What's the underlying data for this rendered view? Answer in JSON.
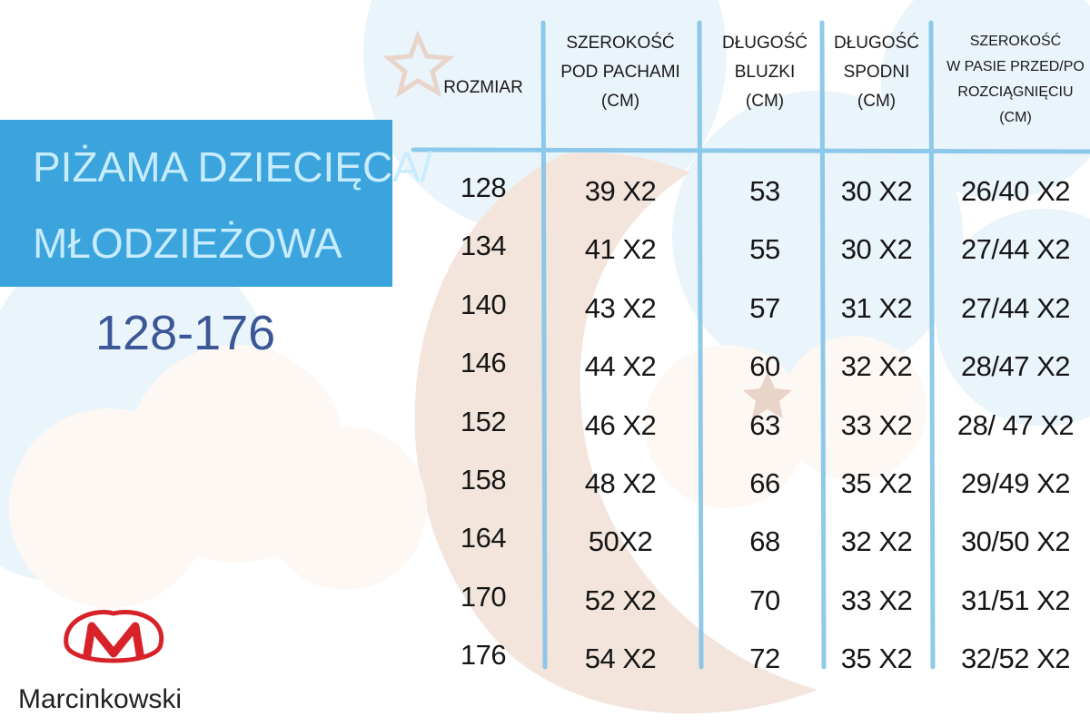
{
  "title": {
    "lines": [
      "PIŻAMA DZIECIĘCA/",
      "MŁODZIEŻOWA"
    ],
    "range": "128-176"
  },
  "brand": "Marcinkowski",
  "table": {
    "headers": [
      [
        "ROZMIAR"
      ],
      [
        "SZEROKOŚĆ",
        "POD PACHAMI",
        "(CM)"
      ],
      [
        "DŁUGOŚĆ",
        "BLUZKI",
        "(CM)"
      ],
      [
        "DŁUGOŚĆ",
        "SPODNI",
        "(CM)"
      ],
      [
        "SZEROKOŚĆ",
        "W PASIE PRZED/PO",
        "ROZCIĄGNIĘCIU",
        "(CM)"
      ]
    ],
    "rows": [
      [
        "128",
        "39 X2",
        "53",
        "30 X2",
        "26/40 X2"
      ],
      [
        "134",
        "41 X2",
        "55",
        "30 X2",
        "27/44 X2"
      ],
      [
        "140",
        "43 X2",
        "57",
        "31 X2",
        "27/44 X2"
      ],
      [
        "146",
        "44 X2",
        "60",
        "32 X2",
        "28/47 X2"
      ],
      [
        "152",
        "46 X2",
        "63",
        "33 X2",
        "28/ 47 X2"
      ],
      [
        "158",
        "48 X2",
        "66",
        "35 X2",
        "29/49 X2"
      ],
      [
        "164",
        "50X2",
        "68",
        "32 X2",
        "30/50 X2"
      ],
      [
        "170",
        "52 X2",
        "70",
        "33 X2",
        "31/51 X2"
      ],
      [
        "176",
        "54 X2",
        "72",
        "35 X2",
        "32/52 X2"
      ]
    ]
  }
}
